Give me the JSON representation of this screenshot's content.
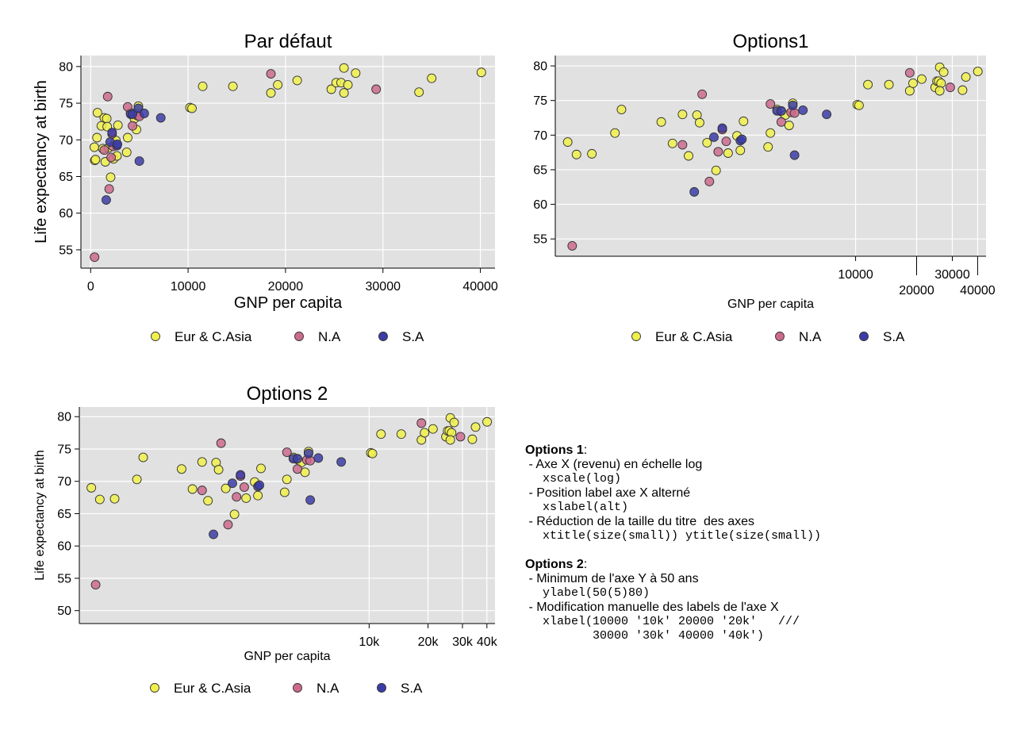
{
  "colors": {
    "eur": "#f0f04c",
    "na": "#cc6a8e",
    "sa": "#3c3ca8",
    "plot_bg": "#e1e1e1",
    "grid": "#ffffff",
    "marker_edge": "#333333"
  },
  "chart_data": [
    {
      "type": "scatter",
      "title": "Par défaut",
      "xlabel": "GNP per capita",
      "ylabel": "Life expectancy at birth",
      "xscale": "linear",
      "xlim": [
        -1000,
        41500
      ],
      "ylim": [
        52.5,
        81.5
      ],
      "xticks": [
        0,
        10000,
        20000,
        30000,
        40000
      ],
      "xtick_labels": [
        "0",
        "10000",
        "20000",
        "30000",
        "40000"
      ],
      "yticks": [
        55,
        60,
        65,
        70,
        75,
        80
      ],
      "ytick_labels": [
        "55",
        "60",
        "65",
        "70",
        "75",
        "80"
      ],
      "grid": true,
      "legend": [
        "Eur & C.Asia",
        "N.A",
        "S.A"
      ],
      "legend_position": "bottom"
    },
    {
      "type": "scatter",
      "title": "Options1",
      "xlabel": "GNP per capita",
      "ylabel": "",
      "xscale": "log",
      "xlim": [
        330,
        44000
      ],
      "ylim": [
        52.5,
        81.5
      ],
      "xticks": [
        10000,
        20000,
        30000,
        40000
      ],
      "xtick_labels": [
        "10000",
        "20000",
        "30000",
        "40000"
      ],
      "xlabel_alternate": true,
      "yticks": [
        55,
        60,
        65,
        70,
        75,
        80
      ],
      "ytick_labels": [
        "55",
        "60",
        "65",
        "70",
        "75",
        "80"
      ],
      "grid": true,
      "legend": [
        "Eur & C.Asia",
        "N.A",
        "S.A"
      ],
      "legend_position": "bottom"
    },
    {
      "type": "scatter",
      "title": "Options 2",
      "xlabel": "GNP per capita",
      "ylabel": "Life expectancy at birth",
      "xscale": "log",
      "xlim": [
        330,
        44000
      ],
      "ylim": [
        48,
        81.5
      ],
      "xticks": [
        10000,
        20000,
        30000,
        40000
      ],
      "xtick_labels": [
        "10k",
        "20k",
        "30k",
        "40k"
      ],
      "yticks": [
        50,
        55,
        60,
        65,
        70,
        75,
        80
      ],
      "ytick_labels": [
        "50",
        "55",
        "60",
        "65",
        "70",
        "75",
        "80"
      ],
      "grid": true,
      "legend": [
        "Eur & C.Asia",
        "N.A",
        "S.A"
      ],
      "legend_position": "bottom"
    }
  ],
  "points": {
    "eur": [
      [
        380,
        69.0
      ],
      [
        420,
        67.2
      ],
      [
        500,
        67.3
      ],
      [
        650,
        70.3
      ],
      [
        700,
        73.7
      ],
      [
        1100,
        71.9
      ],
      [
        1250,
        68.8
      ],
      [
        1400,
        73.0
      ],
      [
        1650,
        72.9
      ],
      [
        1700,
        71.8
      ],
      [
        1500,
        67.0
      ],
      [
        1850,
        68.9
      ],
      [
        2050,
        64.9
      ],
      [
        2350,
        67.4
      ],
      [
        2600,
        69.9
      ],
      [
        2700,
        67.8
      ],
      [
        2800,
        72.0
      ],
      [
        3700,
        68.3
      ],
      [
        3800,
        70.3
      ],
      [
        4100,
        73.7
      ],
      [
        4300,
        73.4
      ],
      [
        4500,
        72.9
      ],
      [
        4700,
        71.4
      ],
      [
        4900,
        74.6
      ],
      [
        10200,
        74.4
      ],
      [
        10400,
        74.3
      ],
      [
        11500,
        77.3
      ],
      [
        14600,
        77.3
      ],
      [
        18500,
        76.4
      ],
      [
        19200,
        77.5
      ],
      [
        21200,
        78.1
      ],
      [
        24700,
        76.9
      ],
      [
        25200,
        77.8
      ],
      [
        25700,
        77.8
      ],
      [
        26000,
        79.8
      ],
      [
        26400,
        77.5
      ],
      [
        26000,
        76.4
      ],
      [
        27200,
        79.1
      ],
      [
        33700,
        76.5
      ],
      [
        35000,
        78.4
      ],
      [
        40100,
        79.2
      ]
    ],
    "na": [
      [
        400,
        54.0
      ],
      [
        1400,
        68.6
      ],
      [
        1750,
        75.9
      ],
      [
        1900,
        63.3
      ],
      [
        2100,
        67.6
      ],
      [
        2200,
        70.8
      ],
      [
        2300,
        69.1
      ],
      [
        3800,
        74.5
      ],
      [
        4300,
        71.9
      ],
      [
        4800,
        73.3
      ],
      [
        5000,
        73.2
      ],
      [
        18500,
        79.0
      ],
      [
        29300,
        76.9
      ]
    ],
    "sa": [
      [
        1600,
        61.8
      ],
      [
        2000,
        69.7
      ],
      [
        2200,
        71.0
      ],
      [
        2700,
        69.2
      ],
      [
        2750,
        69.4
      ],
      [
        4100,
        73.5
      ],
      [
        4300,
        73.5
      ],
      [
        4900,
        74.3
      ],
      [
        5000,
        67.1
      ],
      [
        5500,
        73.6
      ],
      [
        7200,
        73.0
      ]
    ]
  },
  "notes": {
    "opt1_title": "Options 1",
    "opt1_colon": ":",
    "opt1_line1": " - Axe X (revenu) en échelle log",
    "opt1_code1": "xscale(log)",
    "opt1_line2": " - Position label axe X alterné",
    "opt1_code2": "xslabel(alt)",
    "opt1_line3": " - Réduction de la taille du titre  des axes",
    "opt1_code3": "xtitle(size(small)) ytitle(size(small))",
    "opt2_title": "Options 2",
    "opt2_colon": ":",
    "opt2_line1": " - Minimum de l'axe Y à 50 ans",
    "opt2_code1": "ylabel(50(5)80)",
    "opt2_line2": " - Modification manuelle des labels de l'axe X",
    "opt2_code2": "xlabel(10000 '10k' 20000 '20k'   ///",
    "opt2_code3": "       30000 '30k' 40000 '40k')"
  }
}
